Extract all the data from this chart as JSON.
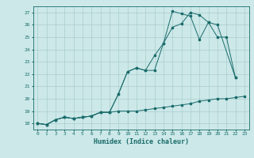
{
  "title": "",
  "xlabel": "Humidex (Indice chaleur)",
  "ylabel": "",
  "xlim": [
    -0.5,
    23.5
  ],
  "ylim": [
    17.5,
    27.5
  ],
  "yticks": [
    18,
    19,
    20,
    21,
    22,
    23,
    24,
    25,
    26,
    27
  ],
  "xticks": [
    0,
    1,
    2,
    3,
    4,
    5,
    6,
    7,
    8,
    9,
    10,
    11,
    12,
    13,
    14,
    15,
    16,
    17,
    18,
    19,
    20,
    21,
    22,
    23
  ],
  "bg_color": "#cce8e8",
  "grid_color": "#aacece",
  "line_color": "#1a6b6b",
  "line1_x": [
    0,
    1,
    2,
    3,
    4,
    5,
    6,
    7,
    8,
    9,
    10,
    11,
    12,
    13,
    14,
    15,
    16,
    17,
    18,
    19,
    20,
    21,
    22,
    23
  ],
  "line1_y": [
    18.0,
    17.9,
    18.3,
    18.5,
    18.4,
    18.5,
    18.6,
    18.9,
    18.9,
    19.0,
    19.0,
    19.0,
    19.1,
    19.2,
    19.3,
    19.4,
    19.5,
    19.6,
    19.8,
    19.9,
    20.0,
    20.0,
    20.1,
    20.2
  ],
  "line2_x": [
    0,
    1,
    2,
    3,
    4,
    5,
    6,
    7,
    8,
    9,
    10,
    11,
    12,
    13,
    14,
    15,
    16,
    17,
    18,
    19,
    20,
    22
  ],
  "line2_y": [
    18.0,
    17.9,
    18.3,
    18.5,
    18.4,
    18.5,
    18.6,
    18.9,
    18.9,
    20.4,
    22.2,
    22.5,
    22.3,
    23.5,
    24.5,
    25.8,
    26.1,
    27.0,
    26.8,
    26.2,
    26.0,
    21.7
  ],
  "line3_x": [
    0,
    1,
    2,
    3,
    4,
    5,
    6,
    7,
    8,
    9,
    10,
    11,
    12,
    13,
    14,
    15,
    16,
    17,
    18,
    19,
    20,
    21,
    22
  ],
  "line3_y": [
    18.0,
    17.9,
    18.3,
    18.5,
    18.4,
    18.5,
    18.6,
    18.9,
    18.9,
    20.4,
    22.2,
    22.5,
    22.3,
    22.3,
    24.5,
    27.1,
    26.9,
    26.7,
    24.8,
    26.2,
    25.0,
    25.0,
    21.7
  ]
}
